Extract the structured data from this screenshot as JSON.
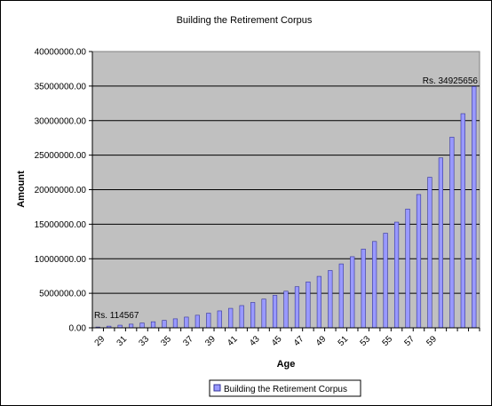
{
  "colors": {
    "plot_bg": "#c0c0c0",
    "bar_fill": "#9999ff",
    "bar_stroke": "#333399",
    "grid": "#000000"
  },
  "chart_data": {
    "type": "bar",
    "title": "Building the Retirement Corpus",
    "xlabel": "Age",
    "ylabel": "Amount",
    "ylim": [
      0,
      40000000
    ],
    "yticks": [
      "0.00",
      "5000000.00",
      "10000000.00",
      "15000000.00",
      "20000000.00",
      "25000000.00",
      "30000000.00",
      "35000000.00",
      "40000000.00"
    ],
    "grid": true,
    "legend_position": "bottom",
    "series": [
      {
        "name": "Building the Retirement Corpus",
        "values": [
          114567,
          240000,
          380000,
          530000,
          700000,
          880000,
          1080000,
          1300000,
          1550000,
          1820000,
          2120000,
          2450000,
          2820000,
          3220000,
          3670000,
          4160000,
          4700000,
          5300000,
          5950000,
          6650000,
          7450000,
          8300000,
          9250000,
          10300000,
          11400000,
          12500000,
          13700000,
          15300000,
          17200000,
          19300000,
          21800000,
          24600000,
          27600000,
          31000000,
          34925656
        ]
      }
    ],
    "categories": [
      "29",
      "30",
      "31",
      "32",
      "33",
      "34",
      "35",
      "36",
      "37",
      "38",
      "39",
      "40",
      "41",
      "42",
      "43",
      "44",
      "45",
      "46",
      "47",
      "48",
      "49",
      "50",
      "51",
      "52",
      "53",
      "54",
      "55",
      "56",
      "57",
      "58",
      "59",
      "60",
      "61",
      "62",
      "63"
    ],
    "x_tick_labels": [
      "29",
      "31",
      "33",
      "35",
      "37",
      "39",
      "41",
      "43",
      "45",
      "47",
      "49",
      "51",
      "53",
      "55",
      "57",
      "59"
    ],
    "annotations": [
      "Rs. 114567",
      "Rs. 34925656"
    ]
  }
}
